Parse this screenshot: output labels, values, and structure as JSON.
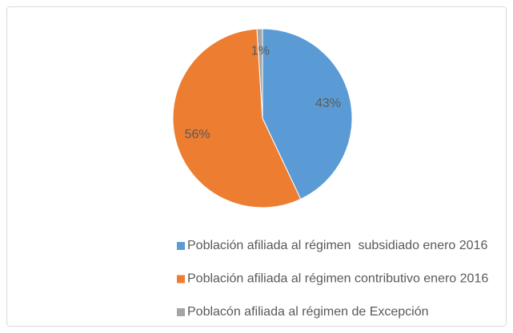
{
  "chart_data": {
    "type": "pie",
    "categories": [
      "Población afiliada al régimen  subsidiado enero 2016",
      "Población afiliada al régimen contributivo enero 2016",
      "Poblacón afiliada al régimen de Excepción"
    ],
    "values": [
      43,
      56,
      1
    ],
    "value_labels": [
      "43%",
      "56%",
      "1%"
    ],
    "colors": [
      "#5b9bd5",
      "#ed7d31",
      "#a5a5a5"
    ],
    "legend": "bottom"
  }
}
